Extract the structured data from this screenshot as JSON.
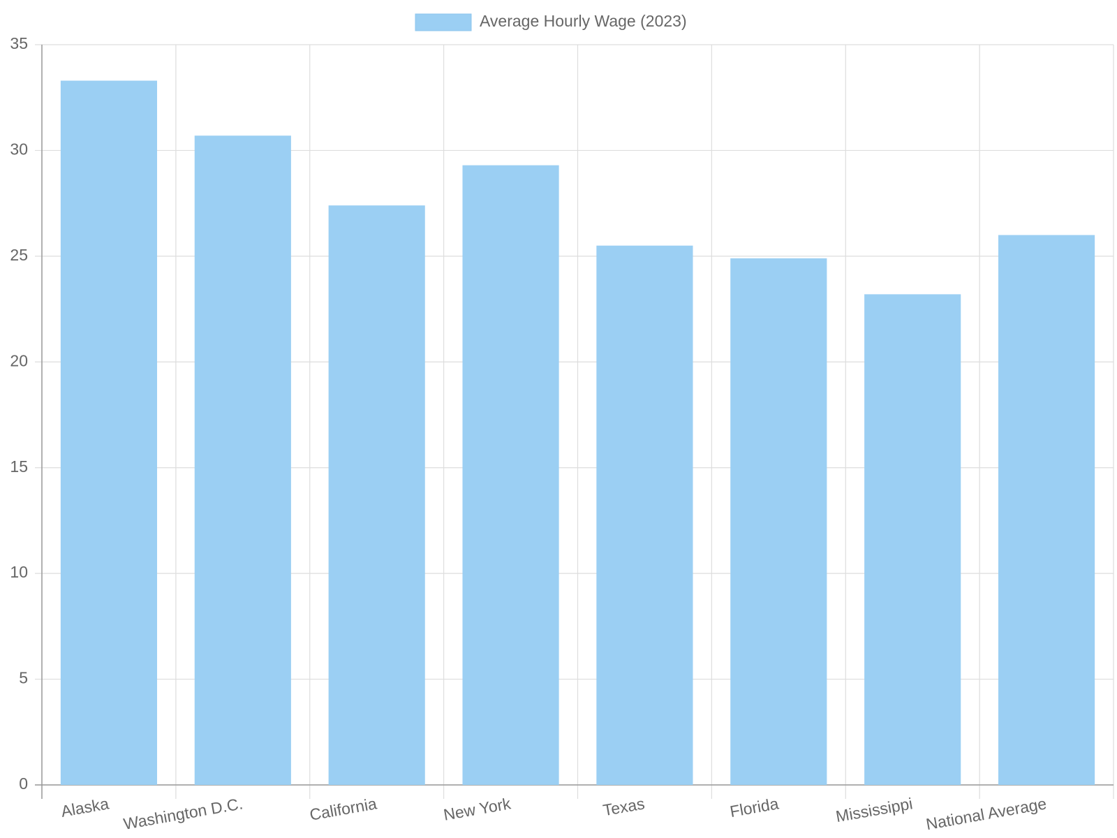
{
  "chart_data": {
    "type": "bar",
    "categories": [
      "Alaska",
      "Washington D.C.",
      "California",
      "New York",
      "Texas",
      "Florida",
      "Mississippi",
      "National Average"
    ],
    "series": [
      {
        "name": "Average Hourly Wage (2023)",
        "color": "#9bcff3",
        "values": [
          33.3,
          30.7,
          27.4,
          29.3,
          25.5,
          24.9,
          23.2,
          26.0
        ]
      }
    ],
    "ylim": [
      0,
      35
    ],
    "yticks": [
      0,
      5,
      10,
      15,
      20,
      25,
      30,
      35
    ],
    "grid": true,
    "legend": "top"
  }
}
